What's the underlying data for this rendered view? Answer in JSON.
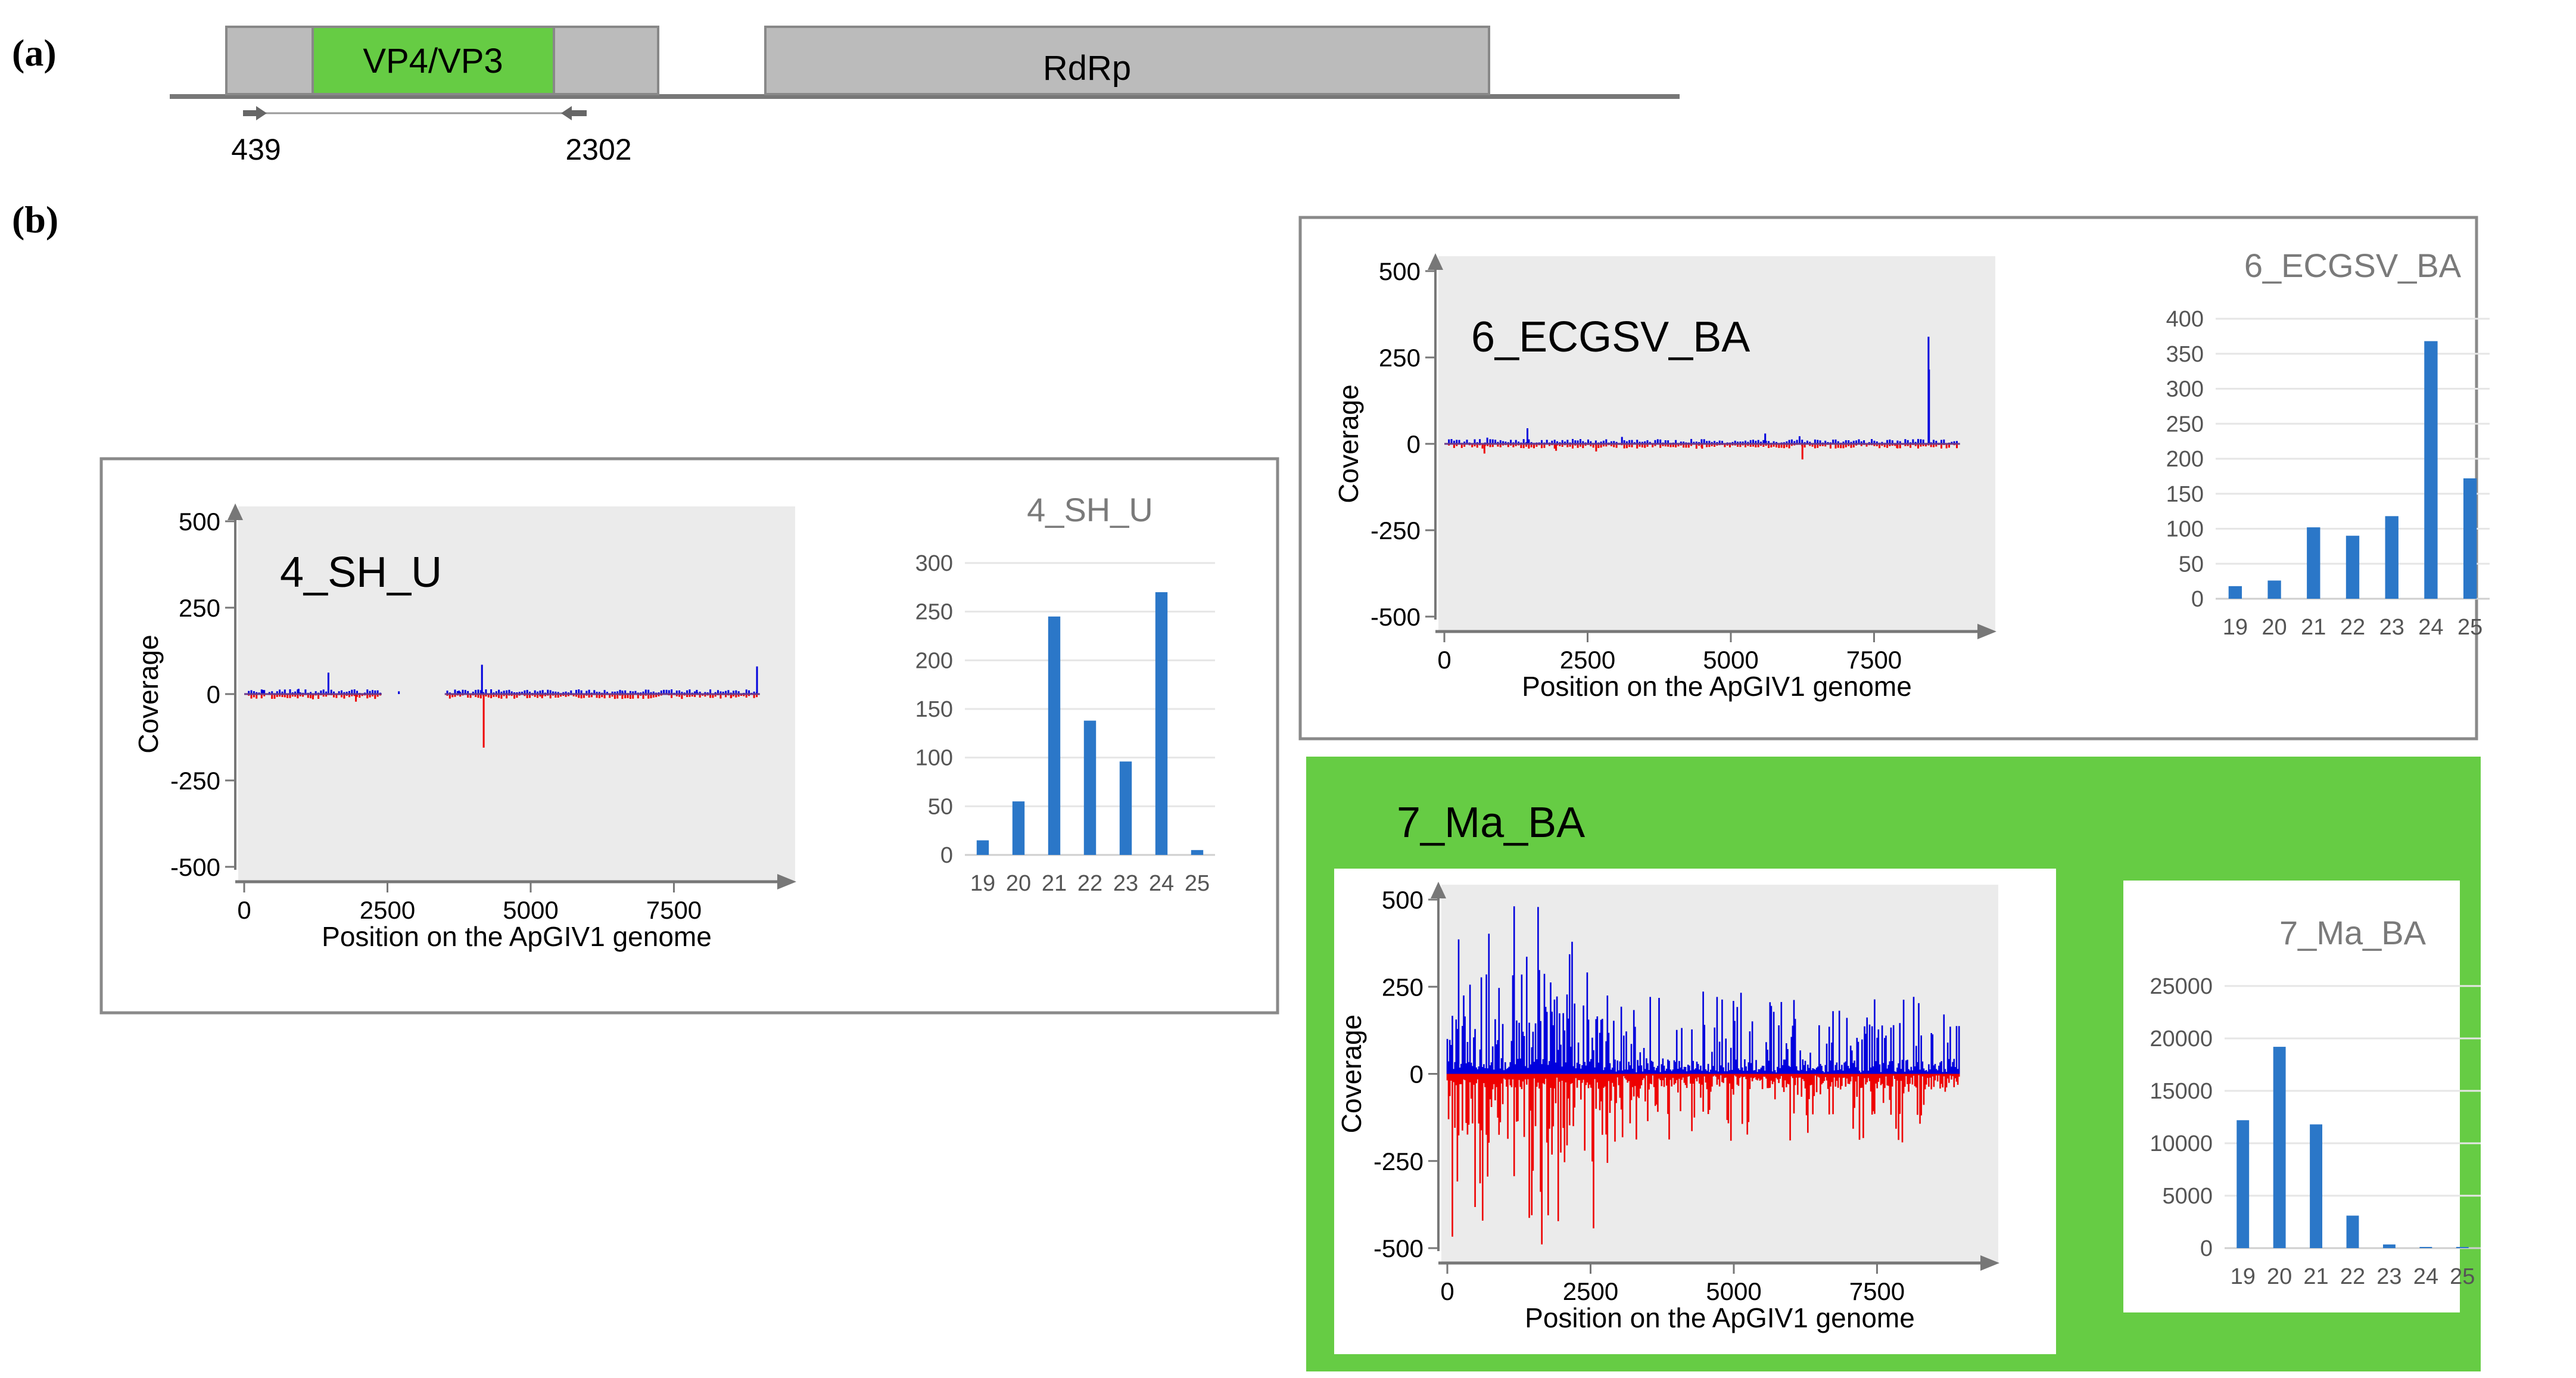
{
  "panel_a": {
    "label": "(a)",
    "genes": [
      {
        "name": "VP4/VP3",
        "start": 650,
        "end": 2100,
        "color": "#66cc44"
      },
      {
        "name": "RdRp",
        "start": 3850,
        "end": 8300,
        "color": "#bbbbbb"
      }
    ],
    "genome_segment": {
      "start": 100,
      "end": 2780
    },
    "genome_length": 9800,
    "primer_forward": "439",
    "primer_reverse": "2302"
  },
  "panel_b": {
    "label": "(b)"
  },
  "colors": {
    "plus_strand": "#0000dd",
    "minus_strand": "#ee0000",
    "bar": "#2b77c8",
    "highlight_bg": "#66cc44",
    "plot_bg": "#ebebeb",
    "box_border": "#8a8a8a",
    "axis_arrow": "#777777"
  },
  "chart_data": [
    {
      "id": "4_SH_U",
      "type": "line",
      "title": "4_SH_U",
      "xlabel": "Position on the ApGIV1 genome",
      "ylabel": "Coverage",
      "xlim": [
        0,
        9200
      ],
      "ylim": [
        -500,
        500
      ],
      "x_ticks": [
        "0",
        "2500",
        "5000",
        "7500"
      ],
      "y_ticks": [
        "500",
        "250",
        "0",
        "-250",
        "-500"
      ],
      "series": [
        {
          "name": "plus",
          "color": "#0000dd",
          "peaks": [
            [
              1470,
              62
            ],
            [
              4150,
              85
            ],
            [
              8950,
              80
            ],
            [
              320,
              12
            ],
            [
              950,
              15
            ],
            [
              2700,
              8
            ],
            [
              3750,
              10
            ],
            [
              6600,
              10
            ],
            [
              7900,
              12
            ]
          ]
        },
        {
          "name": "minus",
          "color": "#ee0000",
          "peaks": [
            [
              4180,
              -155
            ],
            [
              1950,
              -22
            ],
            [
              1200,
              -15
            ],
            [
              5200,
              -12
            ],
            [
              6600,
              -14
            ],
            [
              8500,
              -10
            ]
          ]
        }
      ],
      "gaps": [
        [
          2400,
          3500
        ]
      ]
    },
    {
      "id": "4_SH_U_sizes",
      "type": "bar",
      "title": "4_SH_U",
      "categories": [
        "19",
        "20",
        "21",
        "22",
        "23",
        "24",
        "25"
      ],
      "values": [
        15,
        55,
        245,
        138,
        96,
        270,
        5
      ],
      "ylim": [
        0,
        300
      ],
      "y_ticks": [
        "300",
        "250",
        "200",
        "150",
        "100",
        "50",
        "0"
      ]
    },
    {
      "id": "6_ECGSV_BA",
      "type": "line",
      "title": "6_ECGSV_BA",
      "xlabel": "Position on the ApGIV1 genome",
      "ylabel": "Coverage",
      "xlim": [
        0,
        9200
      ],
      "ylim": [
        -500,
        500
      ],
      "x_ticks": [
        "0",
        "2500",
        "5000",
        "7500"
      ],
      "y_ticks": [
        "500",
        "250",
        "0",
        "-250",
        "-500"
      ],
      "series": [
        {
          "name": "plus",
          "color": "#0000dd",
          "peaks": [
            [
              8450,
              310
            ],
            [
              8460,
              215
            ],
            [
              1450,
              45
            ],
            [
              5600,
              30
            ],
            [
              3100,
              20
            ],
            [
              6200,
              22
            ],
            [
              750,
              18
            ]
          ]
        },
        {
          "name": "minus",
          "color": "#ee0000",
          "peaks": [
            [
              6250,
              -45
            ],
            [
              700,
              -28
            ],
            [
              1950,
              -20
            ],
            [
              2650,
              -22
            ],
            [
              4500,
              -14
            ],
            [
              7900,
              -12
            ]
          ]
        }
      ],
      "gaps": []
    },
    {
      "id": "6_ECGSV_BA_sizes",
      "type": "bar",
      "title": "6_ECGSV_BA",
      "categories": [
        "19",
        "20",
        "21",
        "22",
        "23",
        "24",
        "25"
      ],
      "values": [
        18,
        26,
        102,
        90,
        118,
        368,
        172
      ],
      "ylim": [
        0,
        400
      ],
      "y_ticks": [
        "400",
        "350",
        "300",
        "250",
        "200",
        "150",
        "100",
        "50",
        "0"
      ]
    },
    {
      "id": "7_Ma_BA",
      "type": "line",
      "title": "7_Ma_BA",
      "xlabel": "Position on the ApGIV1 genome",
      "ylabel": "Coverage",
      "xlim": [
        0,
        9200
      ],
      "ylim": [
        -500,
        500
      ],
      "x_ticks": [
        "0",
        "2500",
        "5000",
        "7500"
      ],
      "y_ticks": [
        "500",
        "250",
        "0",
        "-250",
        "-500"
      ],
      "series": [
        {
          "name": "plus",
          "color": "#0000dd",
          "dense": true,
          "max_early": 490,
          "max_late": 240,
          "late_start": 2800
        },
        {
          "name": "minus",
          "color": "#ee0000",
          "dense": true,
          "max_early": -490,
          "max_late": -200,
          "late_start": 2800
        }
      ],
      "gaps": []
    },
    {
      "id": "7_Ma_BA_sizes",
      "type": "bar",
      "title": "7_Ma_BA",
      "categories": [
        "19",
        "20",
        "21",
        "22",
        "23",
        "24",
        "25"
      ],
      "values": [
        12200,
        19200,
        11800,
        3100,
        350,
        20,
        5
      ],
      "ylim": [
        0,
        25000
      ],
      "y_ticks": [
        "25000",
        "20000",
        "15000",
        "10000",
        "5000",
        "0"
      ]
    }
  ]
}
